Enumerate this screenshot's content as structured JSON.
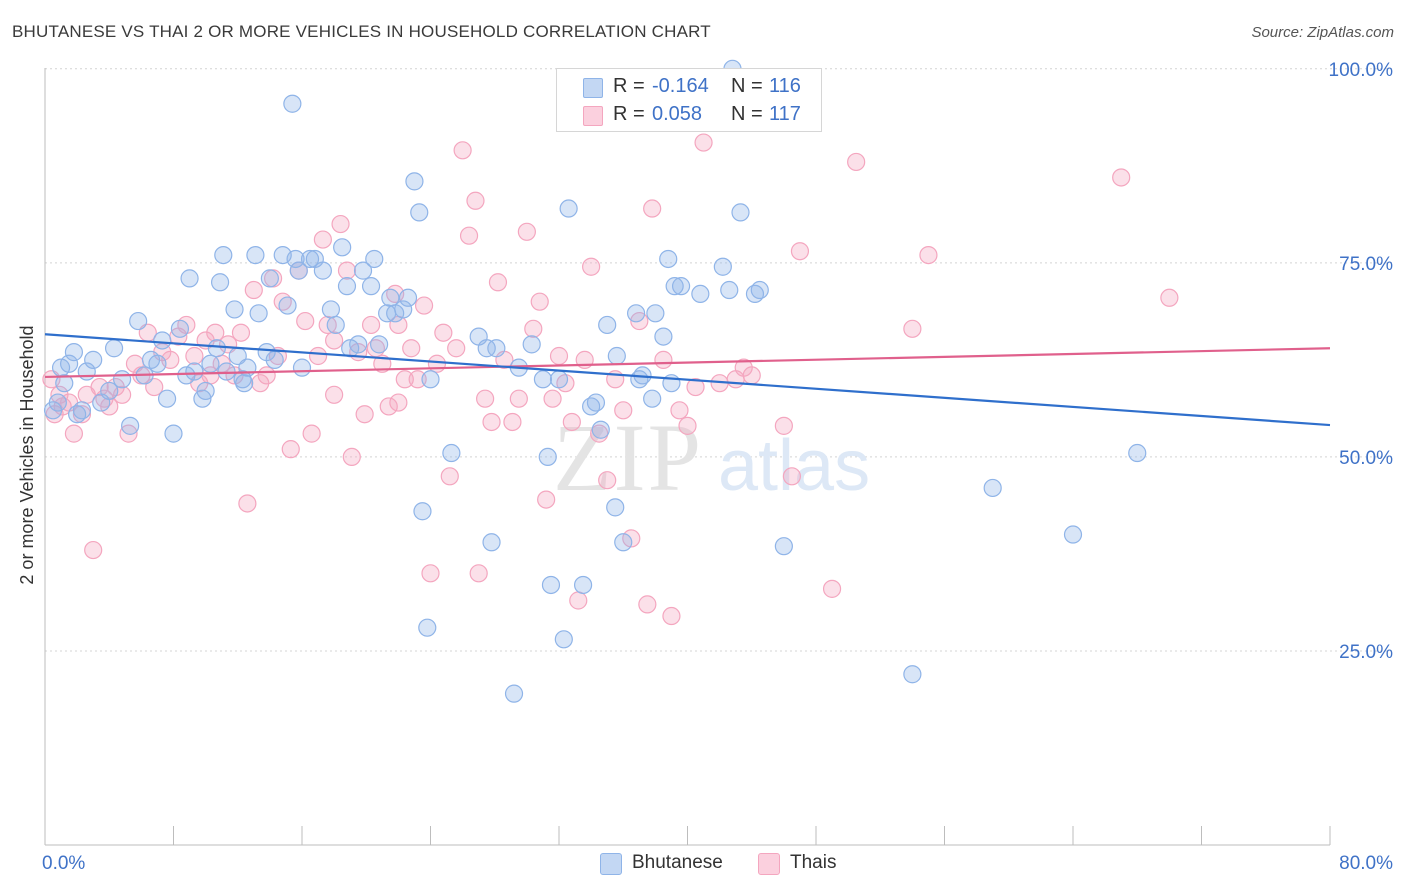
{
  "chart_data": {
    "type": "scatter",
    "title": "BHUTANESE VS THAI 2 OR MORE VEHICLES IN HOUSEHOLD CORRELATION CHART",
    "source": "Source: ZipAtlas.com",
    "ylabel": "2 or more Vehicles in Household",
    "xlabel": "",
    "xlim": [
      0,
      80
    ],
    "ylim": [
      0,
      105
    ],
    "x_tick_labels": [
      "0.0%",
      "80.0%"
    ],
    "y_ticks": [
      25,
      50,
      75,
      100
    ],
    "y_tick_labels": [
      "25.0%",
      "50.0%",
      "75.0%",
      "100.0%"
    ],
    "watermark": "ZIPatlas",
    "colors": {
      "bhutanese": "#8fb4e8",
      "bhutanese_line": "#2f6fcc",
      "thais": "#f4a6bf",
      "thais_line": "#e0608c",
      "accent_text": "#3f72c7"
    },
    "legend": {
      "r_label": "R =",
      "n_label": "N =",
      "rows": [
        {
          "series": "Bhutanese",
          "r": "-0.164",
          "n": "116"
        },
        {
          "series": "Thais",
          "r": "0.058",
          "n": "117"
        }
      ]
    },
    "series": [
      {
        "name": "Bhutanese",
        "trend": {
          "x": [
            0,
            80
          ],
          "y": [
            65.8,
            54.1
          ]
        },
        "points": [
          [
            0.5,
            56
          ],
          [
            0.8,
            57
          ],
          [
            1,
            61.5
          ],
          [
            1.2,
            59.5
          ],
          [
            1.5,
            62
          ],
          [
            1.8,
            63.5
          ],
          [
            2,
            55.5
          ],
          [
            2.3,
            56
          ],
          [
            2.6,
            61
          ],
          [
            3,
            62.5
          ],
          [
            3.5,
            57
          ],
          [
            4,
            58.5
          ],
          [
            4.3,
            64
          ],
          [
            4.8,
            60
          ],
          [
            5.3,
            54
          ],
          [
            5.8,
            67.5
          ],
          [
            6.2,
            60.5
          ],
          [
            6.6,
            62.5
          ],
          [
            7,
            62
          ],
          [
            7.3,
            65
          ],
          [
            7.6,
            57.5
          ],
          [
            8,
            53
          ],
          [
            8.4,
            66.5
          ],
          [
            8.8,
            60.5
          ],
          [
            9,
            73
          ],
          [
            9.3,
            61
          ],
          [
            9.8,
            57.5
          ],
          [
            10,
            58.5
          ],
          [
            10.3,
            62
          ],
          [
            10.7,
            64
          ],
          [
            10.9,
            72.5
          ],
          [
            11.1,
            76
          ],
          [
            11.3,
            61
          ],
          [
            11.8,
            69
          ],
          [
            12,
            63
          ],
          [
            12.3,
            60
          ],
          [
            12.4,
            59.5
          ],
          [
            12.6,
            61.5
          ],
          [
            13.1,
            76
          ],
          [
            13.3,
            68.5
          ],
          [
            13.8,
            63.5
          ],
          [
            14,
            73
          ],
          [
            14.3,
            62.5
          ],
          [
            14.8,
            76
          ],
          [
            15.1,
            69.5
          ],
          [
            15.4,
            95.5
          ],
          [
            15.6,
            75.5
          ],
          [
            15.8,
            74
          ],
          [
            16,
            61.5
          ],
          [
            16.5,
            75.5
          ],
          [
            16.8,
            75.5
          ],
          [
            17.3,
            74
          ],
          [
            17.8,
            69
          ],
          [
            18.1,
            67
          ],
          [
            18.5,
            77
          ],
          [
            18.8,
            72
          ],
          [
            19,
            64
          ],
          [
            19.5,
            64.5
          ],
          [
            19.8,
            74
          ],
          [
            20.3,
            72
          ],
          [
            20.5,
            75.5
          ],
          [
            20.8,
            64.5
          ],
          [
            21.3,
            68.5
          ],
          [
            21.5,
            70.5
          ],
          [
            21.8,
            68.5
          ],
          [
            22.3,
            69
          ],
          [
            22.6,
            70.5
          ],
          [
            23,
            85.5
          ],
          [
            23.3,
            81.5
          ],
          [
            23.5,
            43
          ],
          [
            23.8,
            28
          ],
          [
            24,
            60
          ],
          [
            25.3,
            50.5
          ],
          [
            27,
            65.5
          ],
          [
            27.5,
            64
          ],
          [
            27.8,
            39
          ],
          [
            28.1,
            64
          ],
          [
            29.2,
            19.5
          ],
          [
            29.5,
            61.5
          ],
          [
            30.3,
            64.5
          ],
          [
            31,
            60
          ],
          [
            31.3,
            50
          ],
          [
            31.5,
            33.5
          ],
          [
            32,
            60
          ],
          [
            32.3,
            26.5
          ],
          [
            32.6,
            82
          ],
          [
            33.5,
            33.5
          ],
          [
            34,
            56.5
          ],
          [
            34.3,
            57
          ],
          [
            34.6,
            53.5
          ],
          [
            35,
            67
          ],
          [
            35.5,
            43.5
          ],
          [
            36,
            39
          ],
          [
            36.8,
            68.5
          ],
          [
            37,
            60
          ],
          [
            37.2,
            60.5
          ],
          [
            37.8,
            57.5
          ],
          [
            38,
            68.5
          ],
          [
            38.5,
            65.5
          ],
          [
            38.8,
            75.5
          ],
          [
            39,
            59.5
          ],
          [
            39.2,
            72
          ],
          [
            39.6,
            72
          ],
          [
            40.8,
            71
          ],
          [
            42.2,
            74.5
          ],
          [
            42.6,
            71.5
          ],
          [
            42.8,
            100
          ],
          [
            43.3,
            81.5
          ],
          [
            44.2,
            71
          ],
          [
            44.5,
            71.5
          ],
          [
            46,
            38.5
          ],
          [
            54,
            22
          ],
          [
            59,
            46
          ],
          [
            64,
            40
          ],
          [
            68,
            50.5
          ],
          [
            35.6,
            63
          ]
        ]
      },
      {
        "name": "Thais",
        "trend": {
          "x": [
            0,
            80
          ],
          "y": [
            60.3,
            64.0
          ]
        },
        "points": [
          [
            0.4,
            60
          ],
          [
            0.6,
            55.5
          ],
          [
            0.9,
            58
          ],
          [
            1.1,
            56.5
          ],
          [
            1.5,
            57
          ],
          [
            1.8,
            53
          ],
          [
            2.3,
            55.5
          ],
          [
            2.6,
            58
          ],
          [
            3,
            38
          ],
          [
            3.4,
            59
          ],
          [
            3.7,
            57.5
          ],
          [
            4,
            56.5
          ],
          [
            4.4,
            59
          ],
          [
            4.8,
            58
          ],
          [
            5.2,
            53
          ],
          [
            5.6,
            62
          ],
          [
            6,
            60.5
          ],
          [
            6.4,
            66
          ],
          [
            6.8,
            59
          ],
          [
            7.3,
            63.5
          ],
          [
            7.8,
            62.5
          ],
          [
            8.3,
            65.5
          ],
          [
            8.8,
            67
          ],
          [
            9.3,
            63
          ],
          [
            9.6,
            59.5
          ],
          [
            10,
            65
          ],
          [
            10.3,
            60.5
          ],
          [
            10.6,
            66
          ],
          [
            11,
            62
          ],
          [
            11.4,
            64.5
          ],
          [
            11.8,
            60.5
          ],
          [
            12.2,
            66
          ],
          [
            12.6,
            44
          ],
          [
            13,
            71.5
          ],
          [
            13.4,
            59.5
          ],
          [
            13.8,
            60.5
          ],
          [
            14.2,
            73
          ],
          [
            14.5,
            63
          ],
          [
            14.8,
            70
          ],
          [
            15.3,
            51
          ],
          [
            15.8,
            74
          ],
          [
            16.2,
            67.5
          ],
          [
            16.6,
            53
          ],
          [
            17,
            63
          ],
          [
            17.3,
            78
          ],
          [
            17.6,
            67
          ],
          [
            18,
            58
          ],
          [
            18.4,
            80
          ],
          [
            18.8,
            74
          ],
          [
            19.1,
            50
          ],
          [
            19.5,
            63.5
          ],
          [
            19.9,
            55.5
          ],
          [
            20.3,
            67
          ],
          [
            20.6,
            64
          ],
          [
            21,
            62
          ],
          [
            21.4,
            56.5
          ],
          [
            21.8,
            71
          ],
          [
            22,
            67
          ],
          [
            22.4,
            60
          ],
          [
            22.8,
            64
          ],
          [
            23.2,
            60
          ],
          [
            23.6,
            69.5
          ],
          [
            24,
            35
          ],
          [
            24.4,
            62
          ],
          [
            24.8,
            66
          ],
          [
            25.2,
            47.5
          ],
          [
            25.6,
            64
          ],
          [
            26,
            89.5
          ],
          [
            26.4,
            78.5
          ],
          [
            26.8,
            83
          ],
          [
            27,
            35
          ],
          [
            27.4,
            57.5
          ],
          [
            27.8,
            54.5
          ],
          [
            28.2,
            72.5
          ],
          [
            28.6,
            62.5
          ],
          [
            29.1,
            54.5
          ],
          [
            29.5,
            57.5
          ],
          [
            30,
            79
          ],
          [
            30.4,
            66.5
          ],
          [
            30.8,
            70
          ],
          [
            31.2,
            44.5
          ],
          [
            31.6,
            57.5
          ],
          [
            32,
            63
          ],
          [
            32.4,
            59.5
          ],
          [
            32.8,
            54.5
          ],
          [
            33.2,
            31.5
          ],
          [
            33.6,
            62.5
          ],
          [
            34,
            74.5
          ],
          [
            34.5,
            53
          ],
          [
            35,
            47
          ],
          [
            35.5,
            60
          ],
          [
            36,
            56
          ],
          [
            36.5,
            39.5
          ],
          [
            37,
            67.5
          ],
          [
            37.5,
            31
          ],
          [
            37.8,
            82
          ],
          [
            38.5,
            62.5
          ],
          [
            39,
            29.5
          ],
          [
            39.5,
            56
          ],
          [
            40,
            54
          ],
          [
            41,
            90.5
          ],
          [
            42,
            59.5
          ],
          [
            43.5,
            61.5
          ],
          [
            44,
            60.5
          ],
          [
            46,
            54
          ],
          [
            46.5,
            47.5
          ],
          [
            47,
            76.5
          ],
          [
            49,
            33
          ],
          [
            50.5,
            88
          ],
          [
            54,
            66.5
          ],
          [
            55,
            76
          ],
          [
            67,
            86
          ],
          [
            70,
            70.5
          ],
          [
            40.5,
            59
          ],
          [
            43,
            60
          ],
          [
            18,
            65
          ],
          [
            22,
            57
          ]
        ]
      }
    ]
  }
}
